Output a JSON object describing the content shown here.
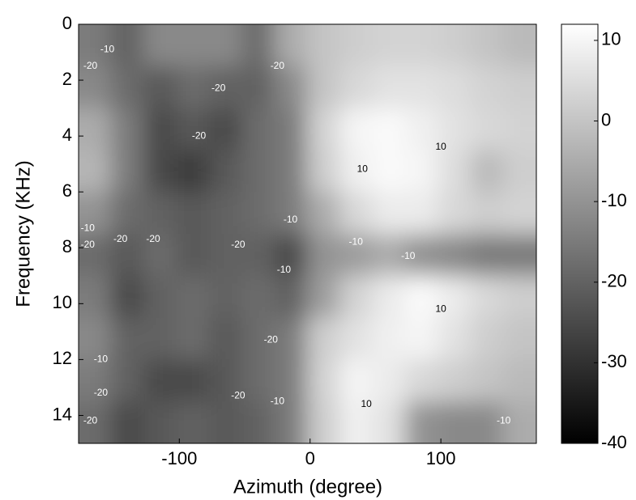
{
  "chart_data": {
    "type": "contour",
    "x_label": "Azimuth (degree)",
    "y_label": "Frequency (KHz)",
    "x": [
      -165,
      -140,
      -115,
      -90,
      -65,
      -40,
      -15,
      10,
      35,
      60,
      85,
      110,
      135,
      160
    ],
    "y": [
      0.75,
      2.25,
      3.75,
      5.25,
      6.75,
      8.25,
      9.75,
      11.25,
      12.75,
      14.25
    ],
    "z": [
      [
        -15,
        -20,
        -12,
        -12,
        -12,
        -18,
        -5,
        0,
        2,
        3,
        3,
        2,
        0,
        -2
      ],
      [
        -12,
        -18,
        -22,
        -18,
        -20,
        -20,
        -12,
        0,
        4,
        6,
        6,
        5,
        3,
        2
      ],
      [
        -5,
        -15,
        -25,
        -22,
        -25,
        -18,
        -15,
        3,
        10,
        11,
        9,
        6,
        4,
        3
      ],
      [
        -3,
        -15,
        -25,
        -28,
        -22,
        -18,
        -15,
        2,
        9,
        11,
        10,
        5,
        -2,
        2
      ],
      [
        -10,
        -18,
        -20,
        -22,
        -20,
        -18,
        -15,
        -5,
        4,
        8,
        8,
        4,
        2,
        3
      ],
      [
        -18,
        -22,
        -18,
        -22,
        -20,
        -20,
        -25,
        -10,
        -8,
        -5,
        -10,
        -12,
        -15,
        -15
      ],
      [
        -15,
        -25,
        -20,
        -18,
        -20,
        -18,
        -20,
        -8,
        3,
        8,
        11,
        8,
        4,
        2
      ],
      [
        -12,
        -20,
        -20,
        -18,
        -22,
        -18,
        -15,
        2,
        6,
        9,
        10,
        6,
        2,
        0
      ],
      [
        -15,
        -20,
        -25,
        -25,
        -22,
        -18,
        -15,
        3,
        10,
        8,
        4,
        2,
        0,
        -2
      ],
      [
        -18,
        -25,
        -22,
        -20,
        -22,
        -20,
        -15,
        2,
        9,
        6,
        -10,
        -12,
        -12,
        -5
      ]
    ],
    "contour_labels": [
      {
        "x": -155,
        "y": 0.9,
        "value": -10
      },
      {
        "x": -168,
        "y": 1.5,
        "value": -20
      },
      {
        "x": -70,
        "y": 2.3,
        "value": -20
      },
      {
        "x": -25,
        "y": 1.5,
        "value": -20
      },
      {
        "x": -85,
        "y": 4.0,
        "value": -20
      },
      {
        "x": -170,
        "y": 7.3,
        "value": -10
      },
      {
        "x": -170,
        "y": 7.9,
        "value": -20
      },
      {
        "x": -145,
        "y": 7.7,
        "value": -20
      },
      {
        "x": -120,
        "y": 7.7,
        "value": -20
      },
      {
        "x": -55,
        "y": 7.9,
        "value": -20
      },
      {
        "x": -15,
        "y": 7.0,
        "value": -10
      },
      {
        "x": -20,
        "y": 8.8,
        "value": -10
      },
      {
        "x": -30,
        "y": 11.3,
        "value": -20
      },
      {
        "x": -160,
        "y": 12.0,
        "value": -10
      },
      {
        "x": -160,
        "y": 13.2,
        "value": -20
      },
      {
        "x": -55,
        "y": 13.3,
        "value": -20
      },
      {
        "x": -25,
        "y": 13.5,
        "value": -10
      },
      {
        "x": -168,
        "y": 14.2,
        "value": -20
      },
      {
        "x": 40,
        "y": 5.2,
        "value": 10
      },
      {
        "x": 100,
        "y": 4.4,
        "value": 10
      },
      {
        "x": 35,
        "y": 7.8,
        "value": -10
      },
      {
        "x": 75,
        "y": 8.3,
        "value": -10
      },
      {
        "x": 100,
        "y": 10.2,
        "value": 10
      },
      {
        "x": 43,
        "y": 13.6,
        "value": 10
      },
      {
        "x": 148,
        "y": 14.2,
        "value": -10
      }
    ],
    "xlim": [
      -177,
      173
    ],
    "ylim": [
      0,
      15
    ],
    "xticks": [
      -100,
      0,
      100
    ],
    "yticks": [
      0,
      2,
      4,
      6,
      8,
      10,
      12,
      14
    ],
    "y_inverted": true,
    "colormap": "gray",
    "clim": [
      -40,
      12
    ],
    "cticks": [
      -40,
      -30,
      -20,
      -10,
      0,
      10
    ]
  }
}
